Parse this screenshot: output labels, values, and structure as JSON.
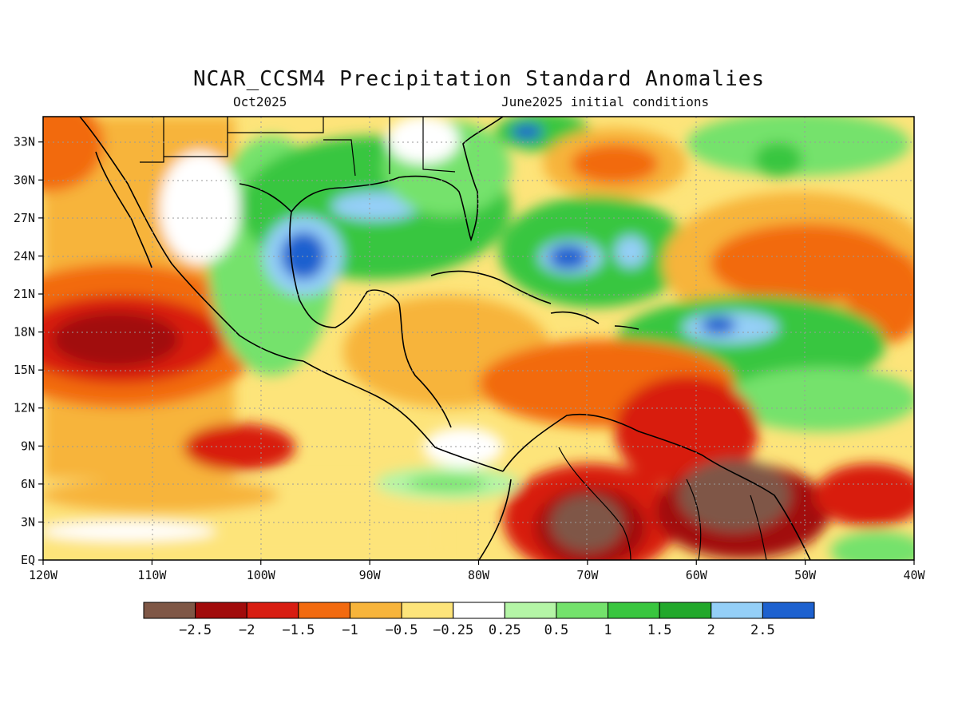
{
  "header": {
    "title": "NCAR_CCSM4 Precipitation Standard Anomalies",
    "valid_month": "Oct2025",
    "init": "June2025 initial conditions"
  },
  "axes": {
    "lon_labels": [
      "120W",
      "110W",
      "100W",
      "90W",
      "80W",
      "70W",
      "60W",
      "50W",
      "40W"
    ],
    "lat_labels": [
      "EQ",
      "3N",
      "6N",
      "9N",
      "12N",
      "15N",
      "18N",
      "21N",
      "24N",
      "27N",
      "30N",
      "33N"
    ],
    "lon_range": [
      -120,
      -40
    ],
    "lat_range": [
      0,
      35
    ],
    "grid": "dotted"
  },
  "colorbar": {
    "labels": [
      "-2.5",
      "-2",
      "-1.5",
      "-1",
      "-0.5",
      "-0.25",
      "0.25",
      "0.5",
      "1",
      "1.5",
      "2",
      "2.5"
    ],
    "colors": [
      "#7f5746",
      "#a10b0b",
      "#d81d11",
      "#f26a0f",
      "#f7b43b",
      "#fde47a",
      "#ffffff",
      "#b4f5a6",
      "#74e26c",
      "#39c63f",
      "#22a82b",
      "#94cff7",
      "#1d61cf"
    ]
  },
  "map_colors": {
    "land_outline": "#000000",
    "strong_dry": "#7f5746",
    "very_dry": "#a10b0b",
    "dry": "#d81d11",
    "moderate_dry": "#f26a0f",
    "slight_dry": "#f7b43b",
    "near_dry": "#fde47a",
    "neutral": "#ffffff",
    "near_wet": "#b4f5a6",
    "slight_wet": "#74e26c",
    "wet": "#39c63f",
    "very_wet": "#22a82b",
    "strong_wet": "#94cff7",
    "extreme_wet": "#1d61cf"
  }
}
